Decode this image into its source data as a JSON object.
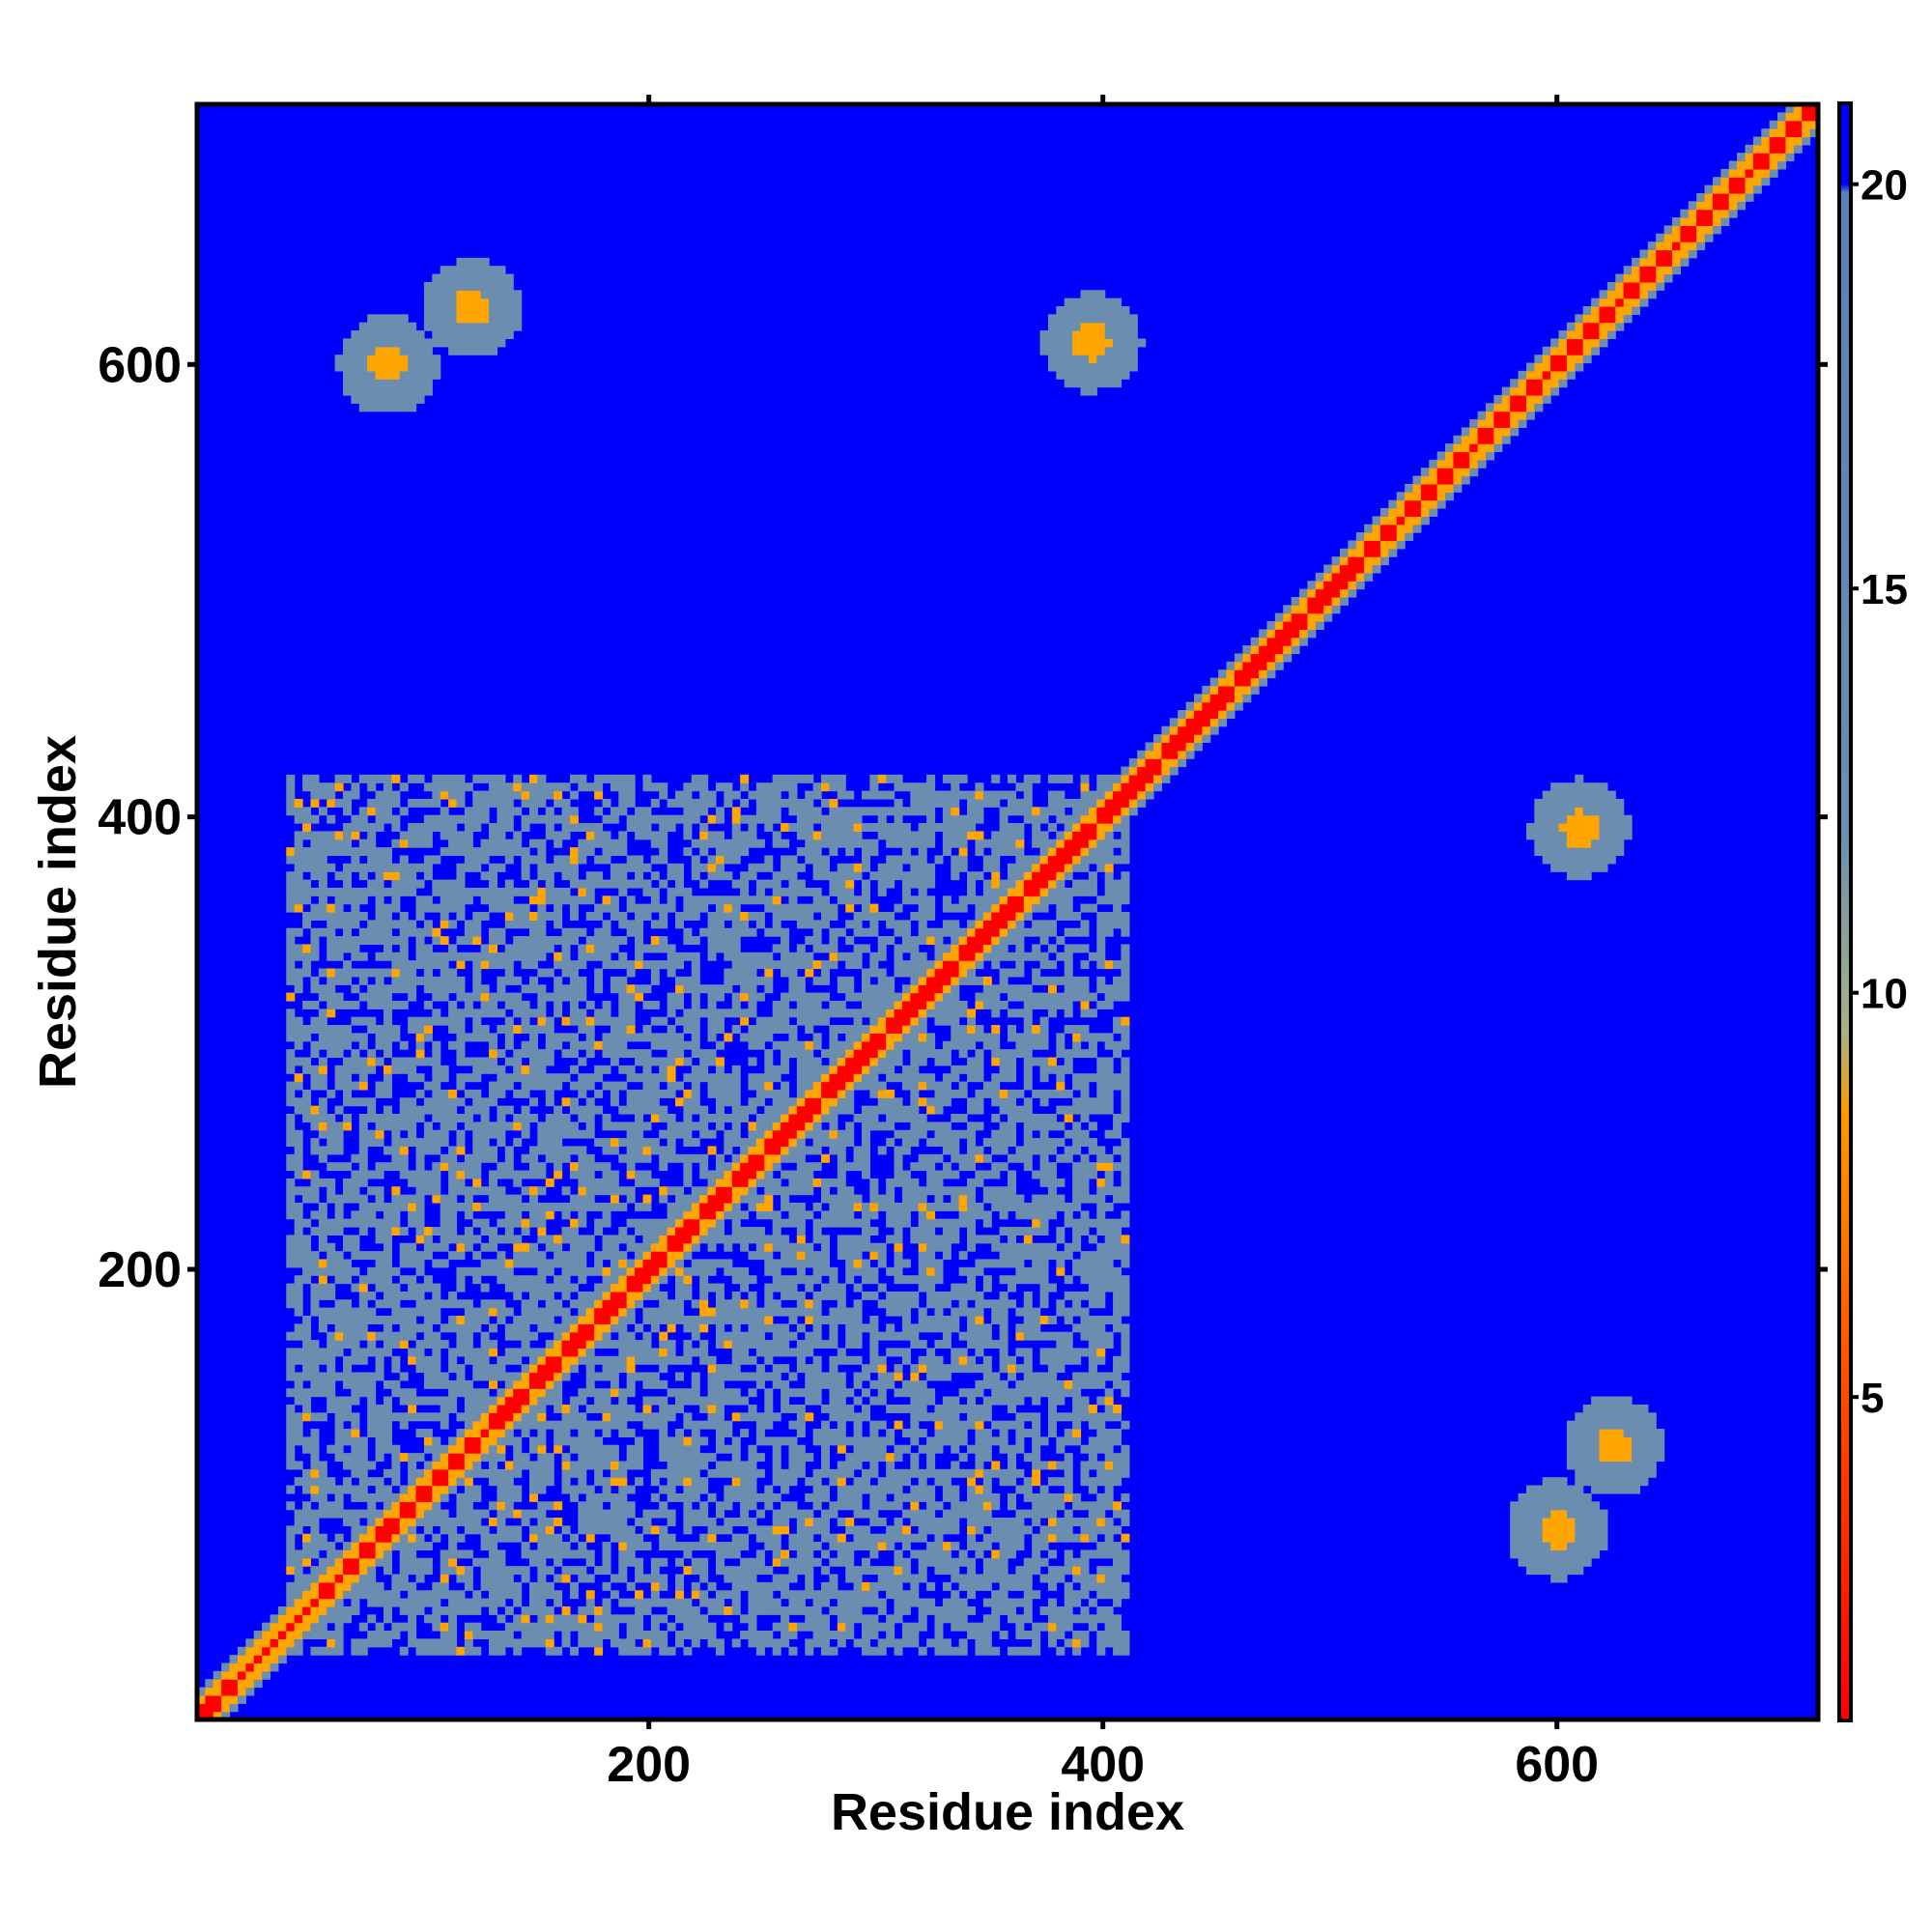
{
  "chart_data": {
    "type": "heatmap",
    "title": "",
    "xlabel": "Residue index",
    "ylabel": "Residue index",
    "xlim": [
      1,
      715
    ],
    "ylim": [
      1,
      715
    ],
    "x_ticks": [
      200,
      400,
      600
    ],
    "y_ticks": [
      200,
      400,
      600
    ],
    "colorbar": {
      "ticks": [
        5,
        10,
        15,
        20
      ],
      "range": [
        1,
        21
      ],
      "colors": [
        {
          "value": 1,
          "color": "#ff0000"
        },
        {
          "value": 5,
          "color": "#ff4a00"
        },
        {
          "value": 8.5,
          "color": "#ff9900"
        },
        {
          "value": 9.5,
          "color": "#a7b284"
        },
        {
          "value": 12,
          "color": "#6b8eb0"
        },
        {
          "value": 19.9,
          "color": "#5a7fb8"
        },
        {
          "value": 20,
          "color": "#0000ff"
        },
        {
          "value": 21,
          "color": "#0000ff"
        }
      ]
    },
    "colors": {
      "background": "#0000ff",
      "diagonal": "#ff0000",
      "contact_region": "#6b8eb0",
      "contact_core": "#ffa500"
    },
    "features": {
      "diagonal": [
        1,
        715
      ],
      "dense_contact_block": {
        "x": [
          40,
          410
        ],
        "y": [
          30,
          420
        ]
      },
      "off_diagonal_clusters": [
        {
          "x": 85,
          "y": 600
        },
        {
          "x": 122,
          "y": 625
        },
        {
          "x": 395,
          "y": 610
        },
        {
          "x": 610,
          "y": 395
        },
        {
          "x": 600,
          "y": 85
        },
        {
          "x": 625,
          "y": 122
        }
      ]
    }
  }
}
